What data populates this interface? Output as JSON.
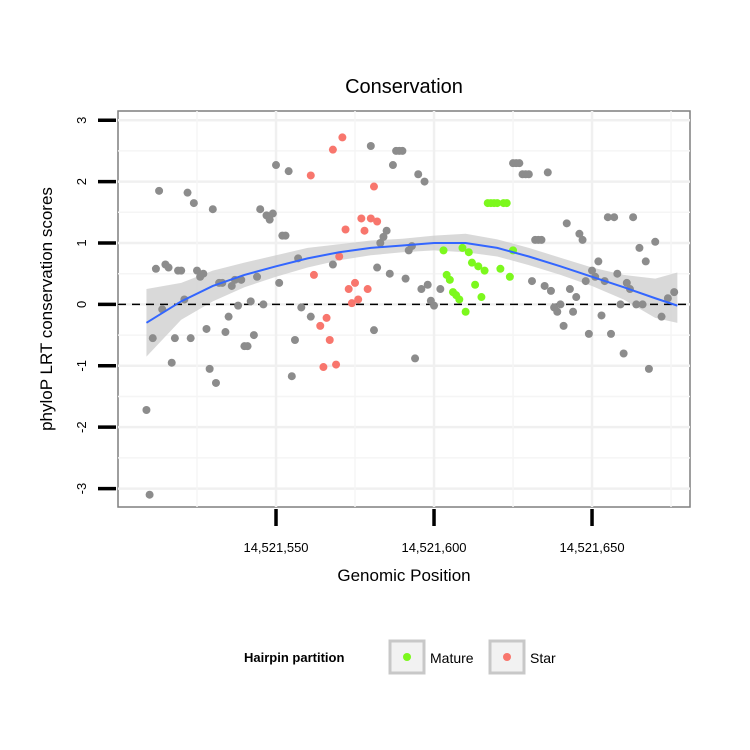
{
  "chart_data": {
    "type": "scatter",
    "title": "Conservation",
    "xlabel": "Genomic Position",
    "ylabel": "phyloP LRT conservation scores",
    "xlim": [
      14521500,
      14521681
    ],
    "ylim": [
      -3.3,
      3.15
    ],
    "x_ticks": [
      14521550,
      14521600,
      14521650
    ],
    "x_tick_labels": [
      "14,521,550",
      "14,521,600",
      "14,521,650"
    ],
    "y_ticks": [
      -3,
      -2,
      -1,
      0,
      1,
      2,
      3
    ],
    "y_tick_labels": [
      "-3",
      "-2",
      "-1",
      "0",
      "1",
      "2",
      "3"
    ],
    "reference_line": {
      "y": 0,
      "style": "dashed"
    },
    "legend": {
      "title": "Hairpin partition",
      "position": "bottom",
      "entries": [
        {
          "label": "Mature",
          "color": "#7cf81d"
        },
        {
          "label": "Star",
          "color": "#f8766d"
        }
      ]
    },
    "colors": {
      "other": "#8c8c8c",
      "Mature": "#7cf81d",
      "Star": "#f8766d",
      "smooth": "#3366ff",
      "ribbon": "#cccccc"
    },
    "series": [
      {
        "name": "Other",
        "points": [
          [
            14521509,
            -1.72
          ],
          [
            14521510,
            -3.1
          ],
          [
            14521511,
            -0.55
          ],
          [
            14521512,
            0.58
          ],
          [
            14521513,
            1.85
          ],
          [
            14521514,
            -0.08
          ],
          [
            14521515,
            0.65
          ],
          [
            14521516,
            0.6
          ],
          [
            14521517,
            -0.95
          ],
          [
            14521518,
            -0.55
          ],
          [
            14521519,
            0.55
          ],
          [
            14521520,
            0.55
          ],
          [
            14521521,
            0.08
          ],
          [
            14521522,
            1.82
          ],
          [
            14521523,
            -0.55
          ],
          [
            14521524,
            1.65
          ],
          [
            14521525,
            0.55
          ],
          [
            14521526,
            0.45
          ],
          [
            14521527,
            0.5
          ],
          [
            14521528,
            -0.4
          ],
          [
            14521529,
            -1.05
          ],
          [
            14521530,
            1.55
          ],
          [
            14521531,
            -1.28
          ],
          [
            14521532,
            0.35
          ],
          [
            14521533,
            0.35
          ],
          [
            14521534,
            -0.45
          ],
          [
            14521535,
            -0.2
          ],
          [
            14521536,
            0.3
          ],
          [
            14521537,
            0.4
          ],
          [
            14521538,
            -0.02
          ],
          [
            14521539,
            0.4
          ],
          [
            14521540,
            -0.68
          ],
          [
            14521541,
            -0.68
          ],
          [
            14521542,
            0.05
          ],
          [
            14521543,
            -0.5
          ],
          [
            14521544,
            0.45
          ],
          [
            14521545,
            1.55
          ],
          [
            14521546,
            0.0
          ],
          [
            14521547,
            1.45
          ],
          [
            14521548,
            1.38
          ],
          [
            14521549,
            1.48
          ],
          [
            14521550,
            2.27
          ],
          [
            14521551,
            0.35
          ],
          [
            14521552,
            1.12
          ],
          [
            14521553,
            1.12
          ],
          [
            14521554,
            2.17
          ],
          [
            14521555,
            -1.17
          ],
          [
            14521556,
            -0.58
          ],
          [
            14521557,
            0.75
          ],
          [
            14521558,
            -0.05
          ],
          [
            14521561,
            -0.2
          ],
          [
            14521568,
            0.65
          ],
          [
            14521580,
            2.58
          ],
          [
            14521581,
            -0.42
          ],
          [
            14521582,
            0.6
          ],
          [
            14521583,
            1.0
          ],
          [
            14521584,
            1.1
          ],
          [
            14521585,
            1.2
          ],
          [
            14521586,
            0.5
          ],
          [
            14521587,
            2.27
          ],
          [
            14521588,
            2.5
          ],
          [
            14521589,
            2.5
          ],
          [
            14521590,
            2.5
          ],
          [
            14521591,
            0.42
          ],
          [
            14521592,
            0.88
          ],
          [
            14521593,
            0.95
          ],
          [
            14521594,
            -0.88
          ],
          [
            14521595,
            2.12
          ],
          [
            14521596,
            0.25
          ],
          [
            14521597,
            2.0
          ],
          [
            14521598,
            0.32
          ],
          [
            14521599,
            0.06
          ],
          [
            14521600,
            -0.02
          ],
          [
            14521602,
            0.25
          ],
          [
            14521625,
            2.3
          ],
          [
            14521626,
            2.3
          ],
          [
            14521627,
            2.3
          ],
          [
            14521628,
            2.12
          ],
          [
            14521629,
            2.12
          ],
          [
            14521630,
            2.12
          ],
          [
            14521631,
            0.38
          ],
          [
            14521632,
            1.05
          ],
          [
            14521633,
            1.05
          ],
          [
            14521634,
            1.05
          ],
          [
            14521635,
            0.3
          ],
          [
            14521636,
            2.15
          ],
          [
            14521637,
            0.22
          ],
          [
            14521638,
            -0.05
          ],
          [
            14521639,
            -0.12
          ],
          [
            14521640,
            0.0
          ],
          [
            14521641,
            -0.35
          ],
          [
            14521642,
            1.32
          ],
          [
            14521643,
            0.25
          ],
          [
            14521644,
            -0.12
          ],
          [
            14521645,
            0.12
          ],
          [
            14521646,
            1.15
          ],
          [
            14521647,
            1.05
          ],
          [
            14521648,
            0.38
          ],
          [
            14521649,
            -0.48
          ],
          [
            14521650,
            0.55
          ],
          [
            14521651,
            0.45
          ],
          [
            14521652,
            0.7
          ],
          [
            14521653,
            -0.18
          ],
          [
            14521654,
            0.38
          ],
          [
            14521655,
            1.42
          ],
          [
            14521656,
            -0.48
          ],
          [
            14521657,
            1.42
          ],
          [
            14521658,
            0.5
          ],
          [
            14521659,
            0.0
          ],
          [
            14521660,
            -0.8
          ],
          [
            14521661,
            0.35
          ],
          [
            14521662,
            0.25
          ],
          [
            14521663,
            1.42
          ],
          [
            14521664,
            0.0
          ],
          [
            14521665,
            0.92
          ],
          [
            14521666,
            0.0
          ],
          [
            14521667,
            0.7
          ],
          [
            14521668,
            -1.05
          ],
          [
            14521670,
            1.02
          ],
          [
            14521672,
            -0.2
          ],
          [
            14521674,
            0.1
          ],
          [
            14521676,
            0.2
          ]
        ]
      },
      {
        "name": "Mature",
        "points": [
          [
            14521603,
            0.88
          ],
          [
            14521604,
            0.48
          ],
          [
            14521605,
            0.4
          ],
          [
            14521606,
            0.2
          ],
          [
            14521607,
            0.15
          ],
          [
            14521608,
            0.08
          ],
          [
            14521609,
            0.92
          ],
          [
            14521610,
            -0.12
          ],
          [
            14521611,
            0.85
          ],
          [
            14521612,
            0.68
          ],
          [
            14521613,
            0.32
          ],
          [
            14521614,
            0.62
          ],
          [
            14521615,
            0.12
          ],
          [
            14521616,
            0.55
          ],
          [
            14521617,
            1.65
          ],
          [
            14521618,
            1.65
          ],
          [
            14521619,
            1.65
          ],
          [
            14521620,
            1.65
          ],
          [
            14521621,
            0.58
          ],
          [
            14521622,
            1.65
          ],
          [
            14521623,
            1.65
          ],
          [
            14521624,
            0.45
          ],
          [
            14521625,
            0.88
          ]
        ]
      },
      {
        "name": "Star",
        "points": [
          [
            14521561,
            2.1
          ],
          [
            14521562,
            0.48
          ],
          [
            14521564,
            -0.35
          ],
          [
            14521565,
            -1.02
          ],
          [
            14521566,
            -0.22
          ],
          [
            14521567,
            -0.58
          ],
          [
            14521568,
            2.52
          ],
          [
            14521569,
            -0.98
          ],
          [
            14521570,
            0.78
          ],
          [
            14521571,
            2.72
          ],
          [
            14521572,
            1.22
          ],
          [
            14521573,
            0.25
          ],
          [
            14521574,
            0.02
          ],
          [
            14521575,
            0.35
          ],
          [
            14521576,
            0.08
          ],
          [
            14521577,
            1.4
          ],
          [
            14521578,
            1.2
          ],
          [
            14521579,
            0.25
          ],
          [
            14521580,
            1.4
          ],
          [
            14521581,
            1.92
          ],
          [
            14521582,
            1.35
          ]
        ]
      }
    ],
    "smooth": {
      "x": [
        14521509,
        14521520,
        14521530,
        14521540,
        14521550,
        14521560,
        14521570,
        14521580,
        14521590,
        14521600,
        14521610,
        14521620,
        14521630,
        14521640,
        14521650,
        14521660,
        14521670,
        14521677
      ],
      "y": [
        -0.3,
        0.05,
        0.3,
        0.48,
        0.62,
        0.75,
        0.85,
        0.92,
        0.96,
        1.0,
        1.0,
        0.92,
        0.78,
        0.62,
        0.45,
        0.28,
        0.1,
        -0.02
      ],
      "ci_low": [
        -0.85,
        -0.25,
        0.05,
        0.28,
        0.45,
        0.6,
        0.72,
        0.8,
        0.85,
        0.88,
        0.85,
        0.78,
        0.64,
        0.48,
        0.3,
        0.08,
        -0.22,
        -0.3
      ],
      "ci_high": [
        0.25,
        0.35,
        0.55,
        0.68,
        0.8,
        0.92,
        0.98,
        1.04,
        1.07,
        1.12,
        1.15,
        1.06,
        0.92,
        0.76,
        0.6,
        0.48,
        0.42,
        0.52
      ]
    }
  }
}
